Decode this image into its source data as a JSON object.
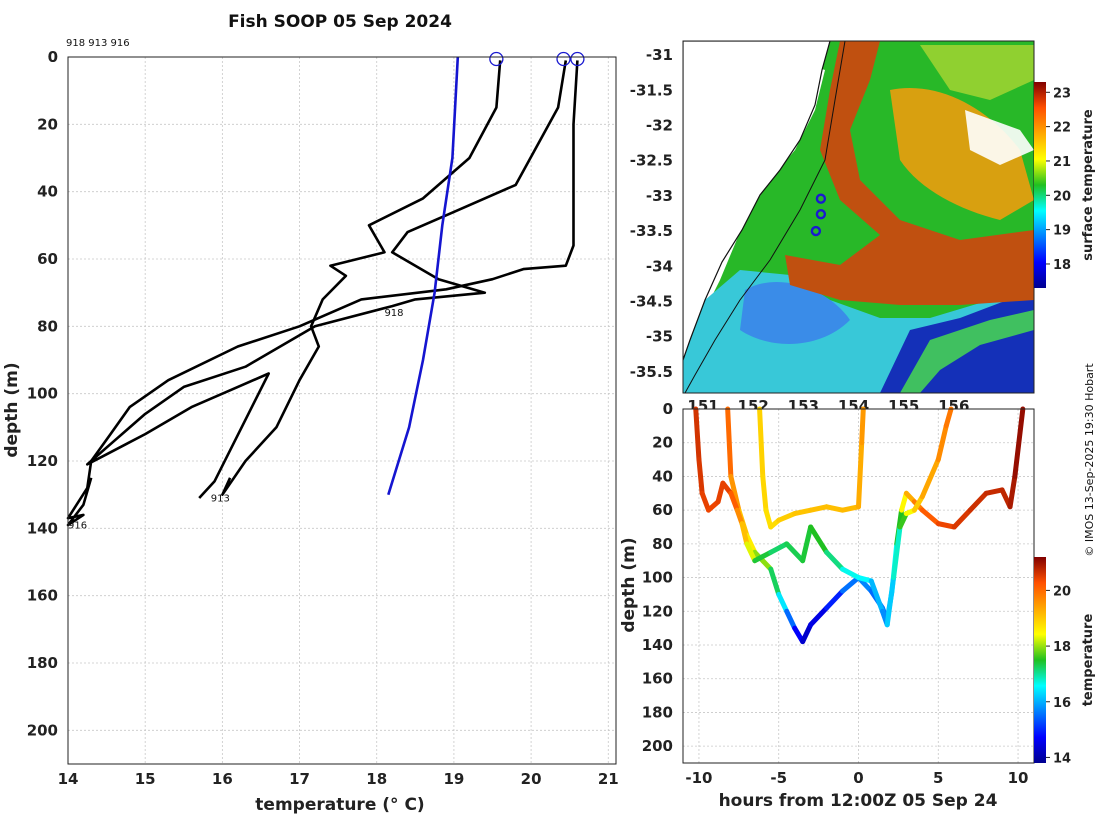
{
  "title": "Fish SOOP 05 Sep 2024",
  "copyright": "© IMOS 13-Sep-2025 19:30 Hobart",
  "colors": {
    "profile": "#000000",
    "climatology": "#1515d0",
    "marker": "#1a1ad0"
  },
  "chart_data": [
    {
      "type": "line",
      "name": "temperature-profiles",
      "xlabel": "temperature (° C)",
      "ylabel": "depth (m)",
      "xlim": [
        14,
        21.1
      ],
      "ylim": [
        210,
        0
      ],
      "xticks": [
        "14",
        "15",
        "16",
        "17",
        "18",
        "19",
        "20",
        "21"
      ],
      "yticks": [
        "0",
        "20",
        "40",
        "60",
        "80",
        "100",
        "120",
        "140",
        "160",
        "180",
        "200"
      ],
      "header_ids": "918 913 916",
      "series": [
        {
          "name": "918",
          "label": "918",
          "label_at": [
            18.1,
            77
          ],
          "points": [
            [
              19.6,
              1
            ],
            [
              19.55,
              15
            ],
            [
              19.2,
              30
            ],
            [
              18.6,
              42
            ],
            [
              17.9,
              50
            ],
            [
              18.1,
              58
            ],
            [
              17.4,
              62
            ],
            [
              17.6,
              65
            ],
            [
              17.3,
              72
            ],
            [
              17.15,
              80
            ],
            [
              17.25,
              86
            ],
            [
              17.0,
              96
            ],
            [
              16.7,
              110
            ],
            [
              16.3,
              120
            ],
            [
              16.0,
              130
            ],
            [
              16.1,
              125
            ]
          ]
        },
        {
          "name": "913",
          "label": "913",
          "label_at": [
            15.85,
            132
          ],
          "points": [
            [
              20.45,
              1
            ],
            [
              20.35,
              15
            ],
            [
              19.8,
              38
            ],
            [
              19.0,
              46
            ],
            [
              18.4,
              52
            ],
            [
              18.2,
              58
            ],
            [
              18.8,
              66
            ],
            [
              19.4,
              70
            ],
            [
              18.5,
              72
            ],
            [
              18.2,
              74
            ],
            [
              17.2,
              80
            ],
            [
              16.3,
              92
            ],
            [
              15.5,
              98
            ],
            [
              15.0,
              106
            ],
            [
              14.6,
              114
            ],
            [
              14.25,
              121
            ],
            [
              14.5,
              118
            ],
            [
              15.0,
              112
            ],
            [
              15.6,
              104
            ],
            [
              16.1,
              99
            ],
            [
              16.6,
              94
            ],
            [
              15.9,
              126
            ],
            [
              15.7,
              131
            ]
          ]
        },
        {
          "name": "916",
          "label": "916",
          "label_at": [
            14.0,
            140
          ],
          "points": [
            [
              20.6,
              1
            ],
            [
              20.55,
              20
            ],
            [
              20.55,
              40
            ],
            [
              20.55,
              56
            ],
            [
              20.45,
              62
            ],
            [
              19.9,
              63
            ],
            [
              19.5,
              66
            ],
            [
              18.9,
              69
            ],
            [
              17.8,
              72
            ],
            [
              17.0,
              80
            ],
            [
              16.2,
              86
            ],
            [
              15.3,
              96
            ],
            [
              14.8,
              104
            ],
            [
              14.55,
              112
            ],
            [
              14.3,
              120
            ],
            [
              14.25,
              128
            ],
            [
              14.0,
              137
            ],
            [
              14.2,
              136
            ],
            [
              14.0,
              139
            ],
            [
              14.2,
              133
            ],
            [
              14.3,
              125
            ]
          ]
        }
      ],
      "climatology": {
        "name": "climatology",
        "points": [
          [
            19.05,
            0
          ],
          [
            18.98,
            30
          ],
          [
            18.85,
            50
          ],
          [
            18.75,
            70
          ],
          [
            18.6,
            90
          ],
          [
            18.42,
            110
          ],
          [
            18.15,
            130
          ]
        ]
      },
      "surface_markers": [
        19.55,
        20.42,
        20.6
      ]
    },
    {
      "type": "heatmap",
      "name": "surface-temperature-map",
      "title": "",
      "colorbar_label": "surface temperature",
      "lon_range": [
        150.6,
        157.6
      ],
      "lat_range": [
        -35.8,
        -30.8
      ],
      "xtick_labels": [
        "151",
        "152",
        "153",
        "154",
        "155",
        "156"
      ],
      "ytick_labels": [
        "-31",
        "-31.5",
        "-32",
        "-32.5",
        "-33",
        "-33.5",
        "-34",
        "-34.5",
        "-35",
        "-35.5"
      ],
      "colorbar_ticks": [
        "18",
        "19",
        "20",
        "21",
        "22",
        "23"
      ],
      "clim": [
        17.3,
        23.3
      ],
      "station_positions": [
        [
          153.35,
          -33.04
        ],
        [
          153.35,
          -33.26
        ],
        [
          153.25,
          -33.5
        ]
      ]
    },
    {
      "type": "scatter",
      "name": "depth-time-trace",
      "xlabel": "hours from 12:00Z 05 Sep 24",
      "ylabel": "depth (m)",
      "colorbar_label": "temperature",
      "xlim": [
        -11,
        11
      ],
      "ylim": [
        210,
        0
      ],
      "xticks": [
        "-10",
        "-5",
        "0",
        "5",
        "10"
      ],
      "yticks": [
        "0",
        "20",
        "40",
        "60",
        "80",
        "100",
        "120",
        "140",
        "160",
        "180",
        "200"
      ],
      "colorbar_ticks": [
        "14",
        "16",
        "18",
        "20"
      ],
      "clim": [
        13.8,
        21.2
      ],
      "tracks": [
        {
          "name": "track-918",
          "points": [
            [
              -8.2,
              0,
              20.2
            ],
            [
              -8.0,
              40,
              19.8
            ],
            [
              -7.5,
              60,
              19.3
            ],
            [
              -7.0,
              75,
              18.8
            ],
            [
              -6.5,
              85,
              18.4
            ],
            [
              -5.5,
              95,
              17.5
            ],
            [
              -5.0,
              110,
              17.0
            ],
            [
              -4.5,
              120,
              15.8
            ],
            [
              -4.0,
              130,
              15.2
            ],
            [
              -3.5,
              138,
              14.2
            ],
            [
              -3.0,
              128,
              14.4
            ],
            [
              -2.0,
              118,
              14.6
            ],
            [
              -1.0,
              108,
              15.3
            ],
            [
              0.0,
              100,
              15.8
            ],
            [
              0.8,
              108,
              15.6
            ],
            [
              1.5,
              118,
              15.4
            ],
            [
              1.8,
              125,
              15.8
            ],
            [
              2.1,
              108,
              16.2
            ],
            [
              2.4,
              80,
              17.0
            ],
            [
              2.7,
              60,
              18.0
            ],
            [
              3.0,
              50,
              19.0
            ],
            [
              3.5,
              55,
              19.6
            ],
            [
              4.0,
              60,
              20.0
            ],
            [
              5.0,
              68,
              20.3
            ],
            [
              6.0,
              70,
              20.5
            ],
            [
              7.0,
              60,
              20.6
            ],
            [
              8.0,
              50,
              20.7
            ],
            [
              9.0,
              48,
              20.7
            ],
            [
              9.5,
              58,
              20.8
            ],
            [
              9.8,
              40,
              21.0
            ],
            [
              10.3,
              0,
              21.1
            ]
          ]
        },
        {
          "name": "track-913",
          "points": [
            [
              -10.2,
              0,
              20.6
            ],
            [
              -10.0,
              30,
              20.6
            ],
            [
              -9.8,
              50,
              20.5
            ],
            [
              -9.4,
              60,
              20.4
            ],
            [
              -8.8,
              55,
              20.4
            ],
            [
              -8.5,
              44,
              20.5
            ],
            [
              -8.0,
              50,
              20.4
            ],
            [
              -7.6,
              60,
              19.9
            ],
            [
              -7.3,
              68,
              19.4
            ],
            [
              -7.0,
              80,
              18.8
            ],
            [
              -6.5,
              90,
              17.8
            ],
            [
              -5.5,
              85,
              17.0
            ],
            [
              -4.5,
              80,
              17.4
            ],
            [
              -3.5,
              90,
              17.2
            ],
            [
              -3.0,
              70,
              17.6
            ],
            [
              -2.0,
              85,
              17.4
            ],
            [
              -1.0,
              95,
              16.8
            ],
            [
              0.0,
              100,
              16.5
            ],
            [
              0.8,
              102,
              16.6
            ],
            [
              1.5,
              120,
              15.5
            ],
            [
              1.8,
              128,
              16.0
            ],
            [
              2.2,
              100,
              16.4
            ],
            [
              2.6,
              70,
              17.2
            ],
            [
              3.0,
              62,
              18.0
            ],
            [
              3.5,
              60,
              18.8
            ],
            [
              4.0,
              52,
              19.2
            ],
            [
              5.0,
              30,
              19.5
            ],
            [
              5.5,
              10,
              19.8
            ],
            [
              5.8,
              0,
              19.9
            ]
          ]
        },
        {
          "name": "track-916",
          "points": [
            [
              -6.2,
              0,
              18.9
            ],
            [
              -6.0,
              40,
              18.9
            ],
            [
              -5.8,
              60,
              18.8
            ],
            [
              -5.5,
              70,
              18.7
            ],
            [
              -5.0,
              66,
              18.9
            ],
            [
              -4.0,
              62,
              19.0
            ],
            [
              -3.0,
              60,
              19.1
            ],
            [
              -2.0,
              58,
              19.1
            ],
            [
              -1.0,
              60,
              19.1
            ],
            [
              0.0,
              58,
              19.2
            ],
            [
              0.2,
              20,
              19.4
            ],
            [
              0.3,
              0,
              19.6
            ]
          ]
        }
      ]
    }
  ]
}
